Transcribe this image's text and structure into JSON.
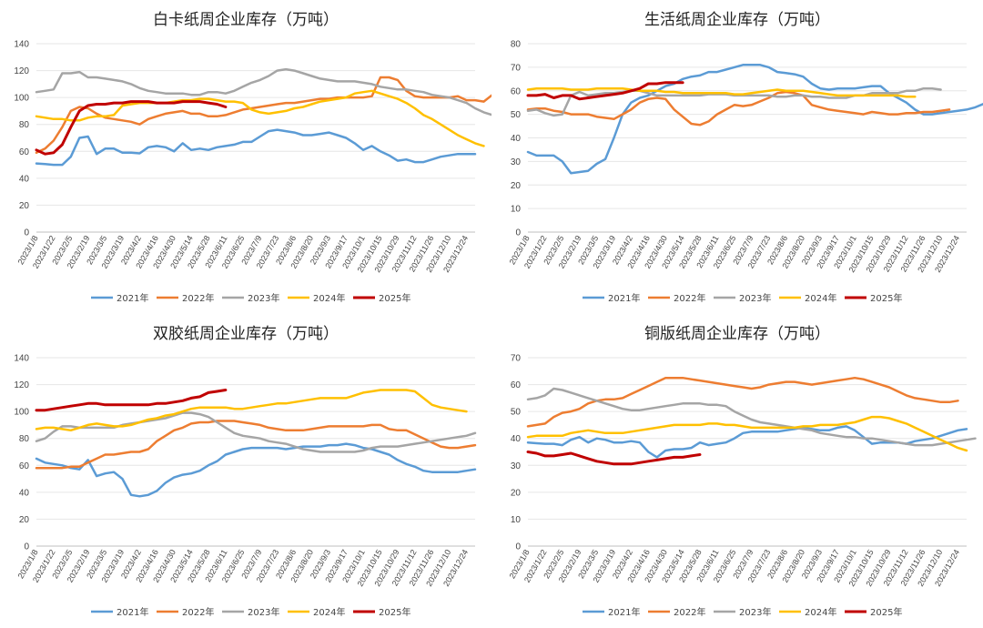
{
  "colors": {
    "2021年": "#5B9BD5",
    "2022年": "#ED7D31",
    "2023年": "#A5A5A5",
    "2024年": "#FFC000",
    "2025年": "#C00000"
  },
  "x_labels": [
    "2023/1/8",
    "2023/1/22",
    "2023/2/5",
    "2023/2/19",
    "2023/3/5",
    "2023/3/19",
    "2023/4/2",
    "2023/4/16",
    "2023/4/30",
    "2023/5/14",
    "2023/5/28",
    "2023/6/11",
    "2023/6/25",
    "2023/7/9",
    "2023/7/23",
    "2023/8/6",
    "2023/8/20",
    "2023/9/3",
    "2023/9/17",
    "2023/10/1",
    "2023/10/15",
    "2023/10/29",
    "2023/11/12",
    "2023/11/26",
    "2023/12/10",
    "2023/12/24"
  ],
  "chart_data": [
    {
      "type": "line",
      "title": "白卡纸周企业库存（万吨）",
      "ylim": [
        0,
        140
      ],
      "ystep": 20,
      "legend": "bottom",
      "series": [
        {
          "name": "2021年",
          "values": [
            51,
            50.5,
            50,
            50,
            56,
            70,
            71,
            58,
            62,
            62,
            59,
            59,
            58.5,
            63,
            64,
            63,
            60,
            66,
            61,
            62,
            61,
            63,
            64,
            65,
            67,
            67,
            71,
            75,
            76,
            75,
            74,
            72,
            72,
            73,
            74,
            72,
            70,
            66,
            61,
            64,
            60,
            57,
            53,
            54,
            52,
            52,
            54,
            56,
            57,
            58,
            58,
            58
          ]
        },
        {
          "name": "2022年",
          "values": [
            59,
            62,
            68,
            78,
            90,
            93,
            92,
            88,
            85,
            84,
            83,
            82,
            80,
            84,
            86,
            88,
            89,
            90,
            88,
            88,
            86,
            86,
            87,
            89,
            91,
            92,
            93,
            94,
            95,
            96,
            96,
            97,
            98,
            99,
            99,
            100,
            100,
            100,
            100,
            101,
            115,
            115,
            113,
            105,
            101,
            100,
            100,
            100,
            100,
            101,
            98,
            98,
            97,
            102
          ]
        },
        {
          "name": "2023年",
          "values": [
            104,
            105,
            106,
            118,
            118,
            119,
            115,
            115,
            114,
            113,
            112,
            110,
            107,
            105,
            104,
            103,
            103,
            103,
            102,
            102,
            104,
            104,
            103,
            105,
            108,
            111,
            113,
            116,
            120,
            121,
            120,
            118,
            116,
            114,
            113,
            112,
            112,
            112,
            111,
            110,
            108,
            107,
            106,
            106,
            105,
            104,
            102,
            101,
            100,
            98,
            96,
            92,
            89,
            87
          ]
        },
        {
          "name": "2024年",
          "values": [
            86,
            85,
            84,
            84,
            83,
            83,
            85,
            86,
            86,
            87,
            94,
            95,
            96,
            96,
            96,
            96,
            97,
            98,
            98,
            99,
            99,
            98,
            97,
            97,
            96,
            91,
            89,
            88,
            89,
            90,
            92,
            93,
            95,
            97,
            98,
            99,
            100,
            103,
            104,
            105,
            103,
            101,
            99,
            96,
            92,
            87,
            84,
            80,
            76,
            72,
            69,
            66,
            64
          ]
        },
        {
          "name": "2025年",
          "values": [
            61,
            58,
            59,
            65,
            78,
            90,
            94,
            95,
            95,
            96,
            96,
            97,
            97,
            97,
            96,
            96,
            96,
            97,
            97,
            97,
            96,
            95,
            93
          ]
        }
      ]
    },
    {
      "type": "line",
      "title": "生活纸周企业库存（万吨）",
      "ylim": [
        0,
        80
      ],
      "ystep": 10,
      "legend": "bottom",
      "series": [
        {
          "name": "2021年",
          "values": [
            34,
            32.5,
            32.5,
            32.5,
            30,
            25,
            25.5,
            26,
            29,
            31,
            40,
            50,
            55,
            57,
            58,
            60,
            62,
            63,
            65,
            66,
            66.5,
            68,
            68,
            69,
            70,
            71,
            71,
            71,
            70,
            68,
            67.5,
            67,
            66,
            63,
            61,
            60.5,
            61,
            61,
            61,
            61.5,
            62,
            62,
            59,
            57,
            55,
            52,
            50,
            50,
            50.5,
            51,
            51.5,
            52,
            53,
            54.5,
            55,
            52
          ]
        },
        {
          "name": "2022年",
          "values": [
            52,
            52.5,
            52.5,
            51.5,
            51,
            50,
            50,
            50,
            49,
            48.5,
            48,
            50,
            52,
            55,
            56.5,
            57,
            56.5,
            52,
            49,
            46,
            45.5,
            47,
            50,
            52,
            54,
            53.5,
            54,
            55.5,
            57,
            59,
            59.5,
            59,
            58,
            54,
            53,
            52,
            51.5,
            51,
            50.5,
            50,
            51,
            50.5,
            50,
            50,
            50.5,
            50.5,
            51,
            51,
            51.5,
            52
          ]
        },
        {
          "name": "2023年",
          "values": [
            51.5,
            52,
            50.5,
            49.5,
            50,
            58,
            59.5,
            58,
            58.5,
            59,
            59,
            59.5,
            60,
            60,
            59,
            58,
            58,
            58,
            58,
            58,
            58,
            58.5,
            58.5,
            58.5,
            58,
            58,
            58,
            58,
            58,
            57.5,
            57.5,
            58,
            58,
            57.5,
            57.5,
            57,
            57,
            57,
            58,
            58,
            59,
            59,
            59,
            59,
            60,
            60,
            61,
            61,
            60.5
          ]
        },
        {
          "name": "2024年",
          "values": [
            60.5,
            61,
            61,
            61,
            61,
            60.5,
            60.5,
            60.5,
            61,
            61,
            61,
            61,
            60.5,
            60,
            60,
            60,
            59.5,
            59.5,
            59,
            59,
            59,
            59,
            59,
            59,
            58.5,
            58.5,
            59,
            59.5,
            60,
            60.5,
            60,
            60,
            60,
            59.5,
            59,
            58.5,
            58,
            58,
            58,
            58,
            58,
            58,
            58,
            58,
            57.5,
            57.5
          ]
        },
        {
          "name": "2025年",
          "values": [
            58,
            58,
            58.5,
            57,
            58,
            58,
            56.5,
            57,
            57.5,
            58,
            58.5,
            59,
            60,
            61,
            63,
            63,
            63.5,
            63.5,
            63.5
          ]
        }
      ]
    },
    {
      "type": "line",
      "title": "双胶纸周企业库存（万吨）",
      "ylim": [
        0,
        140
      ],
      "ystep": 20,
      "legend": "bottom",
      "series": [
        {
          "name": "2021年",
          "values": [
            65,
            62,
            61,
            60,
            58,
            57,
            64,
            52,
            54,
            55,
            50,
            38,
            37,
            38,
            41,
            47,
            51,
            53,
            54,
            56,
            60,
            63,
            68,
            70,
            72,
            73,
            73,
            73,
            73,
            72,
            73,
            74,
            74,
            74,
            75,
            75,
            76,
            75,
            73,
            72,
            70,
            68,
            64,
            61,
            59,
            56,
            55,
            55,
            55,
            55,
            56,
            57
          ]
        },
        {
          "name": "2022年",
          "values": [
            58,
            58,
            58,
            58,
            59,
            59,
            62,
            65,
            68,
            68,
            69,
            70,
            70,
            72,
            78,
            82,
            86,
            88,
            91,
            92,
            92,
            93,
            93,
            93,
            92,
            91,
            90,
            88,
            87,
            86,
            86,
            86,
            87,
            88,
            89,
            89,
            89,
            89,
            89,
            90,
            90,
            87,
            86,
            86,
            83,
            80,
            77,
            74,
            73,
            73,
            74,
            75
          ]
        },
        {
          "name": "2023年",
          "values": [
            78,
            80,
            85,
            89,
            89,
            88,
            88,
            88,
            88,
            88,
            90,
            91,
            92,
            93,
            94,
            95,
            97,
            99,
            99,
            98,
            96,
            92,
            88,
            84,
            82,
            81,
            80,
            78,
            77,
            76,
            74,
            72,
            71,
            70,
            70,
            70,
            70,
            70,
            71,
            73,
            74,
            74,
            74,
            75,
            76,
            77,
            78,
            79,
            80,
            81,
            82,
            84
          ]
        },
        {
          "name": "2024年",
          "values": [
            87,
            88,
            88,
            87,
            86,
            88,
            90,
            91,
            90,
            89,
            89,
            90,
            92,
            94,
            95,
            97,
            98,
            100,
            102,
            103,
            103,
            103,
            103,
            102,
            102,
            103,
            104,
            105,
            106,
            106,
            107,
            108,
            109,
            110,
            110,
            110,
            110,
            112,
            114,
            115,
            116,
            116,
            116,
            116,
            115,
            110,
            105,
            103,
            102,
            101,
            100
          ]
        },
        {
          "name": "2025年",
          "values": [
            101,
            101,
            102,
            103,
            104,
            105,
            106,
            106,
            105,
            105,
            105,
            105,
            105,
            105,
            106,
            106,
            107,
            108,
            110,
            111,
            114,
            115,
            116
          ]
        }
      ]
    },
    {
      "type": "line",
      "title": "铜版纸周企业库存（万吨）",
      "ylim": [
        0,
        70
      ],
      "ystep": 10,
      "legend": "bottom",
      "series": [
        {
          "name": "2021年",
          "values": [
            38.5,
            38.2,
            38,
            38,
            37.5,
            39.5,
            40.5,
            38.5,
            40,
            39.5,
            38.5,
            38.5,
            39,
            38.5,
            35,
            33,
            35.5,
            36,
            36,
            36.5,
            38.5,
            37.5,
            38,
            38.5,
            40,
            42,
            42.5,
            42.5,
            42.5,
            42.5,
            43,
            43.5,
            44,
            43.5,
            43,
            43,
            44,
            44.5,
            43,
            40.5,
            38,
            38.5,
            38.5,
            38.5,
            38,
            39,
            39.5,
            40,
            41,
            42,
            43,
            43.5
          ]
        },
        {
          "name": "2022年",
          "values": [
            44.5,
            45,
            45.5,
            48,
            49.5,
            50,
            51,
            53,
            54,
            54.5,
            54.5,
            55,
            56.5,
            58,
            59.5,
            61,
            62.5,
            62.5,
            62.5,
            62,
            61.5,
            61,
            60.5,
            60,
            59.5,
            59,
            58.5,
            59,
            60,
            60.5,
            61,
            61,
            60.5,
            60,
            60.5,
            61,
            61.5,
            62,
            62.5,
            62,
            61,
            60,
            59,
            57.5,
            56,
            55,
            54.5,
            54,
            53.5,
            53.5,
            54
          ]
        },
        {
          "name": "2023年",
          "values": [
            54.5,
            55,
            56,
            58.5,
            58,
            57,
            56,
            55,
            54,
            53,
            52,
            51,
            50.5,
            50.5,
            51,
            51.5,
            52,
            52.5,
            53,
            53,
            53,
            52.5,
            52.5,
            52,
            50,
            48.5,
            47,
            46,
            45.5,
            45,
            44.5,
            44,
            43.5,
            43,
            42,
            41.5,
            41,
            40.5,
            40.5,
            40,
            40,
            39.5,
            39,
            38.5,
            38,
            37.5,
            37.5,
            37.5,
            38,
            38.5,
            39,
            39.5,
            40
          ]
        },
        {
          "name": "2024年",
          "values": [
            40.5,
            41,
            41,
            41,
            41,
            42,
            42.5,
            43,
            42.5,
            42,
            42,
            42,
            42.5,
            43,
            43.5,
            44,
            44.5,
            45,
            45,
            45,
            45,
            45.5,
            45.5,
            45,
            45,
            44.5,
            44,
            44,
            44,
            44,
            44,
            44,
            44.5,
            44.5,
            45,
            45,
            45,
            45.5,
            46,
            47,
            48,
            48,
            47.5,
            46.5,
            45.5,
            44,
            42.5,
            41,
            39.5,
            38,
            36.5,
            35.5
          ]
        },
        {
          "name": "2025年",
          "values": [
            35,
            34.5,
            33.5,
            33.5,
            34,
            34.5,
            33.5,
            32.5,
            31.5,
            31,
            30.5,
            30.5,
            30.5,
            31,
            31.5,
            32,
            32.5,
            33,
            33,
            33.5,
            34
          ]
        }
      ]
    }
  ]
}
